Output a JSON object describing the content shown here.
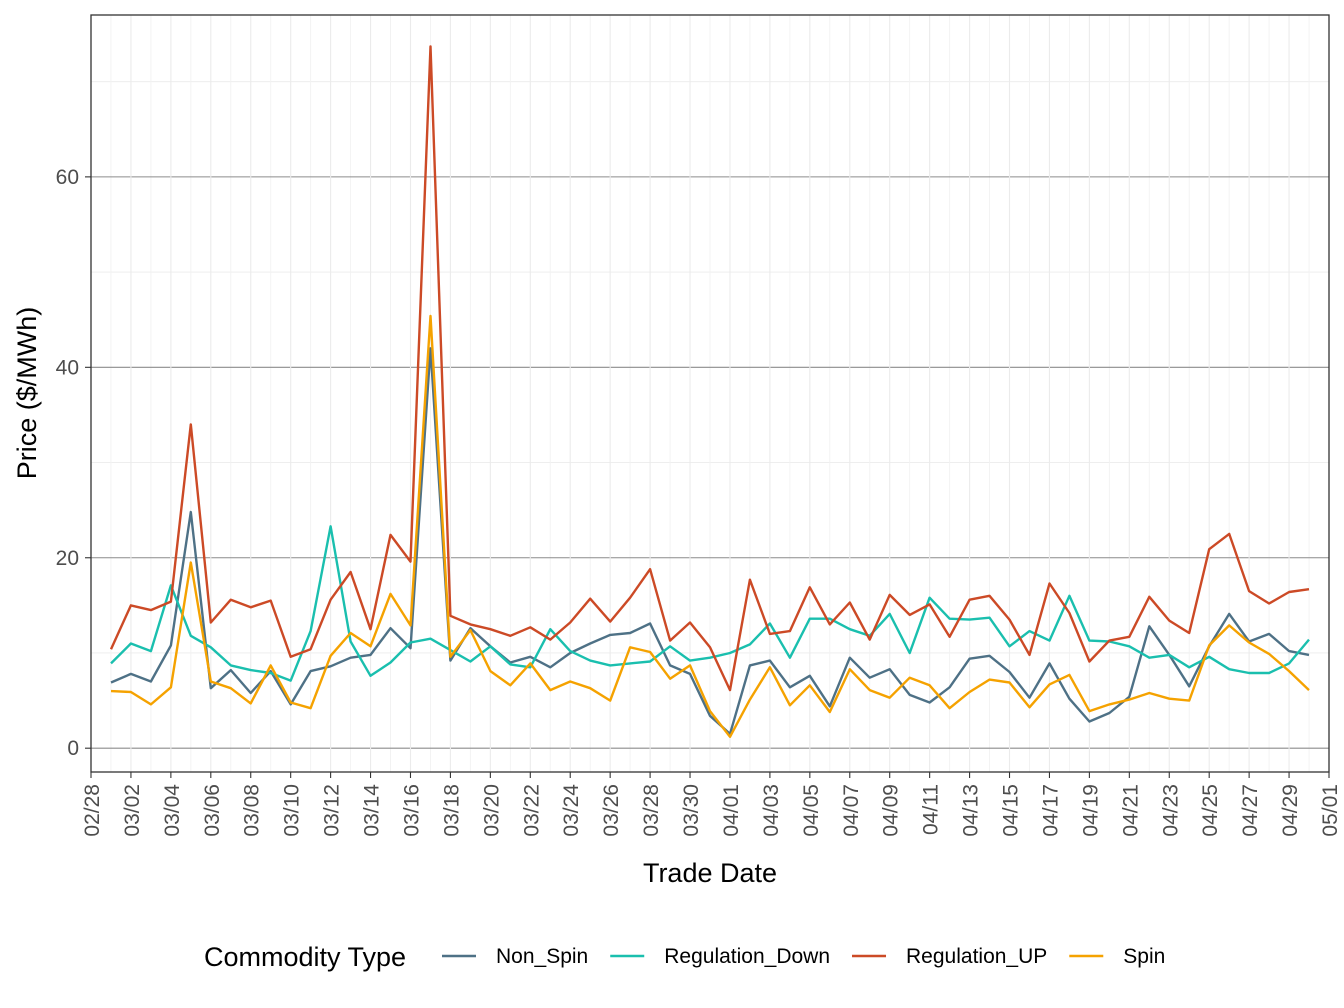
{
  "chart_data": {
    "type": "line",
    "xlabel": "Trade Date",
    "ylabel": "Price ($/MWh)",
    "legend_title": "Commodity Type",
    "legend_position": "bottom",
    "grid": true,
    "ylim": [
      -2.5,
      77
    ],
    "y_ticks": [
      0,
      20,
      40,
      60
    ],
    "xlim": [
      "2025-02-28",
      "2025-05-01"
    ],
    "x_ticks": [
      "02/28",
      "03/02",
      "03/04",
      "03/06",
      "03/08",
      "03/10",
      "03/12",
      "03/14",
      "03/16",
      "03/18",
      "03/20",
      "03/22",
      "03/24",
      "03/26",
      "03/28",
      "03/30",
      "04/01",
      "04/03",
      "04/05",
      "04/07",
      "04/09",
      "04/11",
      "04/13",
      "04/15",
      "04/17",
      "04/19",
      "04/21",
      "04/23",
      "04/25",
      "04/27",
      "04/29",
      "05/01"
    ],
    "x": [
      "2025-03-01",
      "2025-03-02",
      "2025-03-03",
      "2025-03-04",
      "2025-03-05",
      "2025-03-06",
      "2025-03-07",
      "2025-03-08",
      "2025-03-09",
      "2025-03-10",
      "2025-03-11",
      "2025-03-12",
      "2025-03-13",
      "2025-03-14",
      "2025-03-15",
      "2025-03-16",
      "2025-03-17",
      "2025-03-18",
      "2025-03-19",
      "2025-03-20",
      "2025-03-21",
      "2025-03-22",
      "2025-03-23",
      "2025-03-24",
      "2025-03-25",
      "2025-03-26",
      "2025-03-27",
      "2025-03-28",
      "2025-03-29",
      "2025-03-30",
      "2025-03-31",
      "2025-04-01",
      "2025-04-02",
      "2025-04-03",
      "2025-04-04",
      "2025-04-05",
      "2025-04-06",
      "2025-04-07",
      "2025-04-08",
      "2025-04-09",
      "2025-04-10",
      "2025-04-11",
      "2025-04-12",
      "2025-04-13",
      "2025-04-14",
      "2025-04-15",
      "2025-04-16",
      "2025-04-17",
      "2025-04-18",
      "2025-04-19",
      "2025-04-20",
      "2025-04-21",
      "2025-04-22",
      "2025-04-23",
      "2025-04-24",
      "2025-04-25",
      "2025-04-26",
      "2025-04-27",
      "2025-04-28",
      "2025-04-29",
      "2025-04-30"
    ],
    "series": [
      {
        "name": "Non_Spin",
        "color": "#4e7186",
        "values": [
          6.9,
          7.8,
          7.0,
          10.8,
          24.8,
          6.3,
          8.2,
          5.8,
          8.1,
          4.6,
          8.1,
          8.6,
          9.5,
          9.8,
          12.6,
          10.5,
          42.0,
          9.2,
          12.6,
          10.7,
          9.0,
          9.6,
          8.5,
          10.0,
          11.0,
          11.9,
          12.1,
          13.1,
          8.7,
          7.8,
          3.4,
          1.5,
          8.7,
          9.2,
          6.4,
          7.6,
          4.4,
          9.5,
          7.4,
          8.3,
          5.6,
          4.8,
          6.4,
          9.4,
          9.7,
          8.0,
          5.3,
          8.9,
          5.2,
          2.8,
          3.7,
          5.4,
          12.8,
          9.8,
          6.5,
          10.7,
          14.1,
          11.2,
          12.0,
          10.2,
          9.8
        ]
      },
      {
        "name": "Regulation_Down",
        "color": "#1abfae",
        "values": [
          8.9,
          11.0,
          10.2,
          17.1,
          11.8,
          10.6,
          8.7,
          8.2,
          7.9,
          7.1,
          12.3,
          23.3,
          11.2,
          7.6,
          9.0,
          11.1,
          11.5,
          10.3,
          9.1,
          10.7,
          8.8,
          8.5,
          12.5,
          10.2,
          9.2,
          8.7,
          8.9,
          9.1,
          10.7,
          9.2,
          9.5,
          10.0,
          10.9,
          13.1,
          9.5,
          13.6,
          13.6,
          12.5,
          11.8,
          14.1,
          10.0,
          15.8,
          13.6,
          13.5,
          13.7,
          10.7,
          12.3,
          11.3,
          16.0,
          11.3,
          11.2,
          10.7,
          9.5,
          9.8,
          8.5,
          9.6,
          8.3,
          7.9,
          7.9,
          8.9,
          11.4
        ]
      },
      {
        "name": "Regulation_UP",
        "color": "#cc4a26",
        "values": [
          10.4,
          15.0,
          14.5,
          15.4,
          34.0,
          13.2,
          15.6,
          14.8,
          15.5,
          9.6,
          10.4,
          15.6,
          18.5,
          12.5,
          22.4,
          19.6,
          73.7,
          13.9,
          13.0,
          12.5,
          11.8,
          12.7,
          11.4,
          13.2,
          15.7,
          13.3,
          15.8,
          18.8,
          11.3,
          13.2,
          10.6,
          6.1,
          17.7,
          12.0,
          12.3,
          16.9,
          13.0,
          15.3,
          11.4,
          16.1,
          14.0,
          15.1,
          11.7,
          15.6,
          16.0,
          13.5,
          9.8,
          17.3,
          14.2,
          9.1,
          11.3,
          11.7,
          15.9,
          13.4,
          12.1,
          20.9,
          22.5,
          16.5,
          15.2,
          16.4,
          16.7
        ]
      },
      {
        "name": "Spin",
        "color": "#f5a200",
        "values": [
          6.0,
          5.9,
          4.6,
          6.4,
          19.5,
          7.0,
          6.3,
          4.7,
          8.7,
          4.8,
          4.2,
          9.7,
          12.1,
          10.7,
          16.2,
          12.9,
          45.4,
          9.6,
          12.4,
          8.1,
          6.6,
          8.9,
          6.1,
          7.0,
          6.3,
          5.0,
          10.6,
          10.1,
          7.3,
          8.7,
          3.9,
          1.2,
          5.1,
          8.5,
          4.5,
          6.6,
          3.8,
          8.3,
          6.1,
          5.3,
          7.4,
          6.6,
          4.2,
          5.9,
          7.2,
          6.9,
          4.3,
          6.7,
          7.7,
          3.9,
          4.6,
          5.1,
          5.8,
          5.2,
          5.0,
          10.8,
          12.9,
          11.1,
          9.9,
          8.1,
          6.1
        ]
      }
    ]
  }
}
